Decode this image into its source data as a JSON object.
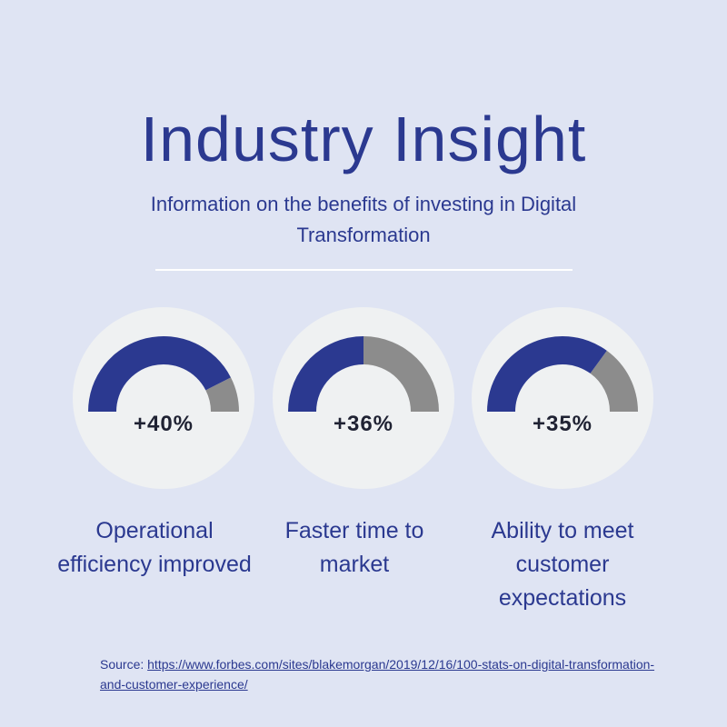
{
  "header": {
    "title": "Industry Insight",
    "subtitle": "Information on the benefits of investing in Digital Transformation"
  },
  "colors": {
    "background": "#dfe4f3",
    "accent": "#2b3990",
    "remainder": "#8c8c8c",
    "card": "#eff1f2"
  },
  "chart_data": [
    {
      "type": "gauge",
      "value_label": "+40%",
      "label": "Operational efficiency improved",
      "fill_fraction": 0.85
    },
    {
      "type": "gauge",
      "value_label": "+36%",
      "label": "Faster time to market",
      "fill_fraction": 0.5
    },
    {
      "type": "gauge",
      "value_label": "+35%",
      "label": "Ability to meet customer expectations",
      "fill_fraction": 0.7
    }
  ],
  "source": {
    "prefix": "Source: ",
    "link_text": "https://www.forbes.com/sites/blakemorgan/2019/12/16/100-stats-on-digital-transformation-and-customer-experience/"
  }
}
